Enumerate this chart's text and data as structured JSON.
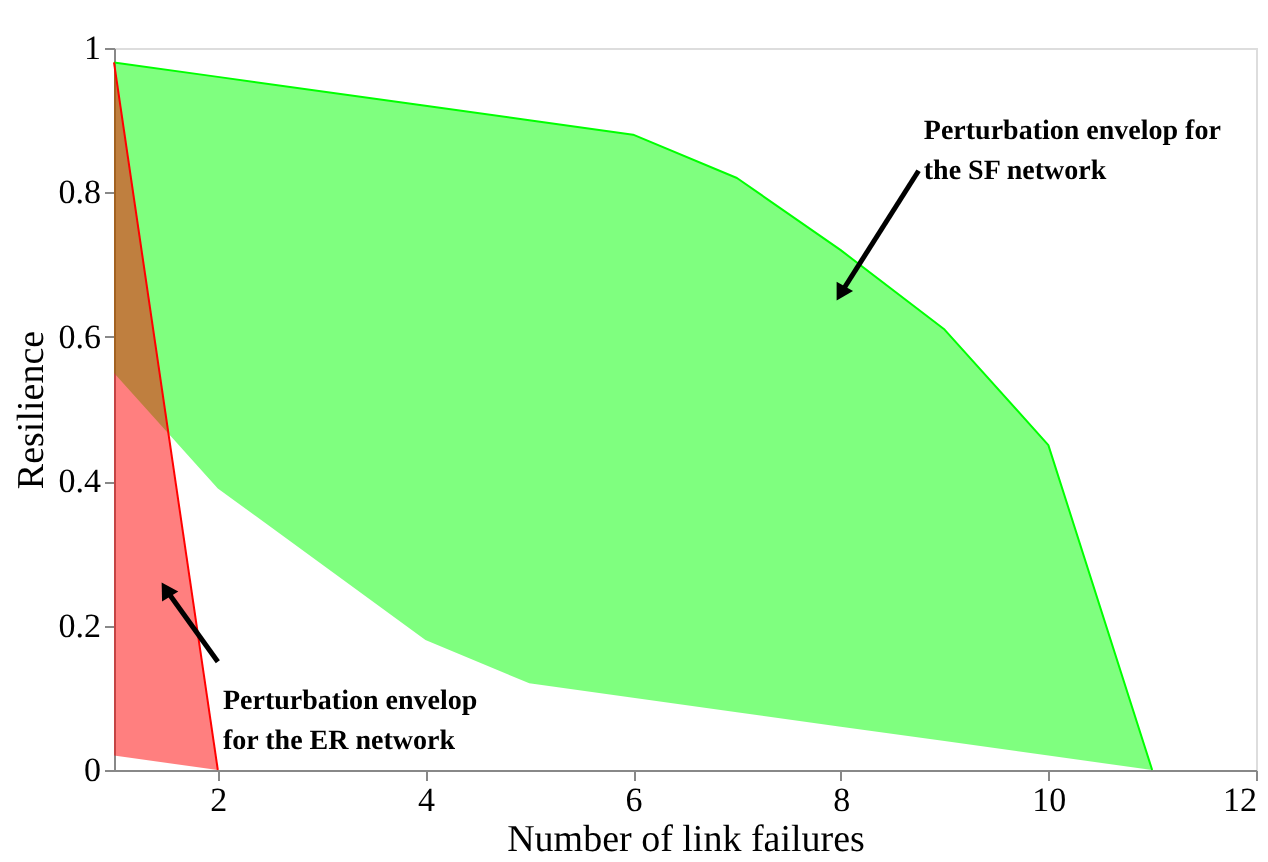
{
  "chart_data": {
    "type": "line",
    "xlabel": "Number of link failures",
    "ylabel": "Resilience",
    "xlim": [
      1,
      12
    ],
    "ylim": [
      0,
      1
    ],
    "xticks": [
      2,
      4,
      6,
      8,
      10,
      12
    ],
    "yticks": [
      0,
      0.2,
      0.4,
      0.6,
      0.8,
      1
    ],
    "grid": false,
    "series": [
      {
        "color": "#00ff00",
        "x": [
          1,
          2,
          4,
          5,
          6,
          7,
          8,
          9,
          10,
          11
        ],
        "values": [
          0.98,
          0.96,
          0.92,
          0.9,
          0.88,
          0.82,
          0.72,
          0.61,
          0.45,
          0
        ],
        "lower": [
          0.55,
          0.39,
          0.18,
          0.12,
          0.1,
          0.08,
          0.06,
          0.04,
          0.02,
          0
        ],
        "upper": [
          0.98,
          0.96,
          0.92,
          0.9,
          0.88,
          0.82,
          0.72,
          0.61,
          0.45,
          0
        ]
      },
      {
        "color": "#ff0000",
        "x": [
          1,
          2
        ],
        "values": [
          0.98,
          0
        ],
        "lower": [
          0.02,
          0
        ],
        "upper": [
          0.98,
          0
        ]
      }
    ],
    "annotations": [
      {
        "text": "Perturbation envelop for\nthe SF network",
        "x": 8,
        "y": 0.66
      },
      {
        "text": "Perturbation envelop\nfor the ER network",
        "x": 1.5,
        "y": 0.25
      }
    ]
  }
}
